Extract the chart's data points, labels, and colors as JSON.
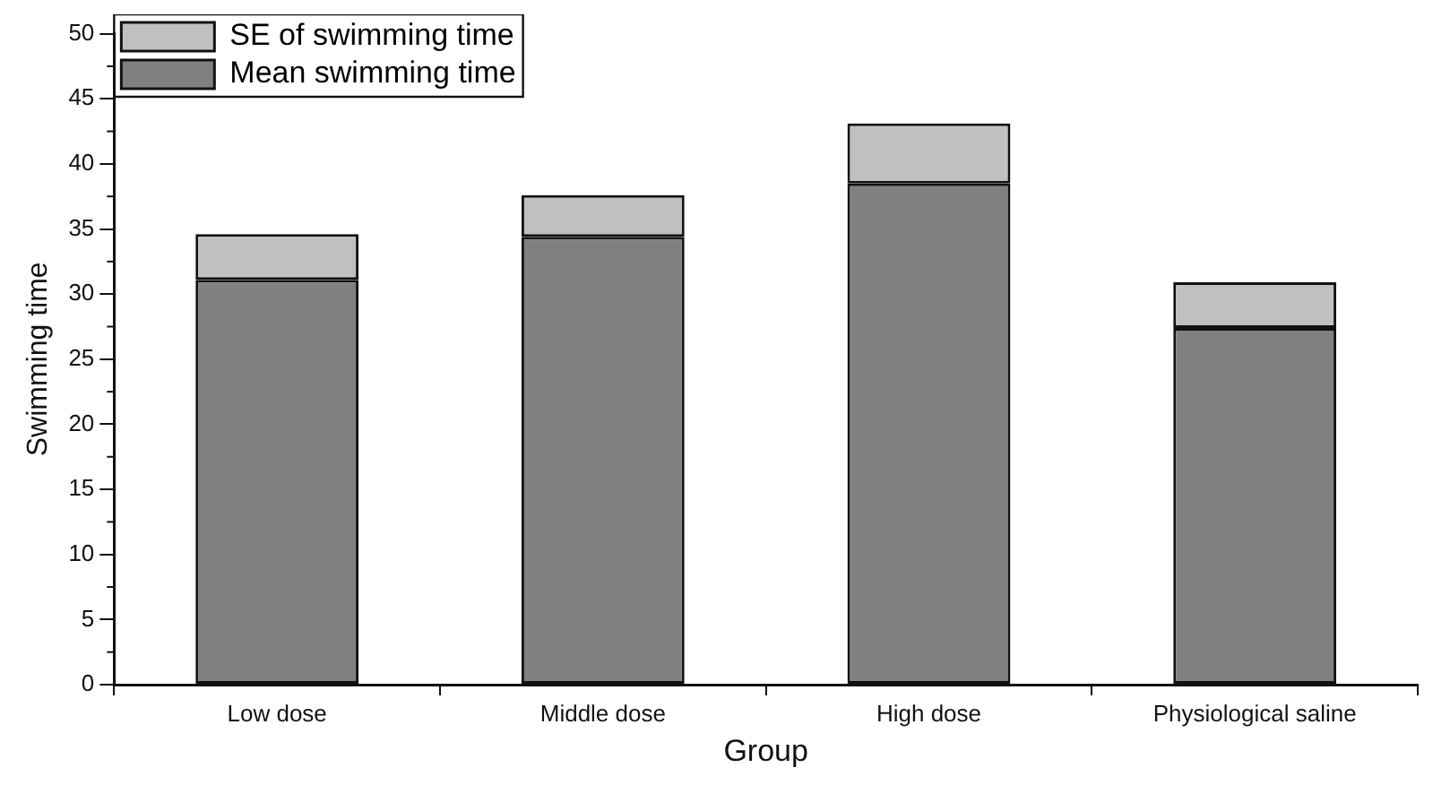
{
  "chart_data": {
    "type": "bar",
    "stacked": true,
    "xlabel": "Group",
    "ylabel": "Swimming time",
    "categories": [
      "Low dose",
      "Middle dose",
      "High dose",
      "Physiological saline"
    ],
    "series": [
      {
        "name": "Mean swimming time",
        "color": "#808080",
        "values": [
          31.1,
          34.4,
          38.5,
          27.4
        ]
      },
      {
        "name": "SE of swimming time",
        "color": "#c0c0c0",
        "values": [
          3.5,
          3.2,
          4.6,
          3.5
        ]
      }
    ],
    "ylim": [
      0,
      50
    ],
    "yticks": [
      0,
      5,
      10,
      15,
      20,
      25,
      30,
      35,
      40,
      45,
      50
    ],
    "grid": false,
    "legend": "top left"
  }
}
